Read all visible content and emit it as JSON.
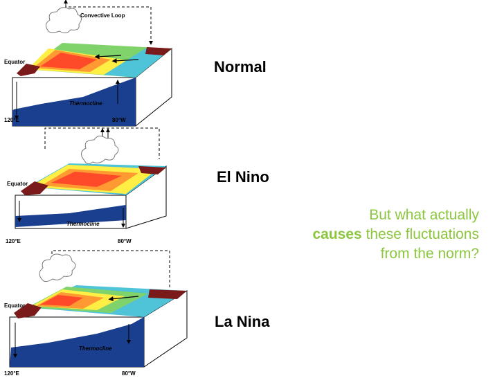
{
  "panels": [
    {
      "label": "Normal",
      "equator": "Equator",
      "thermocline": "Thermocline",
      "west": "120°E",
      "east": "80°W",
      "loop": "Convective Loop"
    },
    {
      "label": "El Nino",
      "equator": "Equator",
      "thermocline": "Thermocline",
      "west": "120°E",
      "east": "80°W"
    },
    {
      "label": "La Nina",
      "equator": "Equator",
      "thermocline": "Thermocline",
      "west": "120°E",
      "east": "80°W"
    }
  ],
  "question": {
    "part1": "But what actually",
    "emphasis": "causes",
    "part2": "these fluctuations from the norm?"
  },
  "colors": {
    "accent_text": "#8cc63f",
    "warm_core": "#ff4a2a",
    "warm": "#ff9a33",
    "mild": "#ffee44",
    "cool": "#7fd36a",
    "cold": "#4fc3d8",
    "land": "#7a1a1a",
    "thermocline": "#1b3f8f"
  }
}
